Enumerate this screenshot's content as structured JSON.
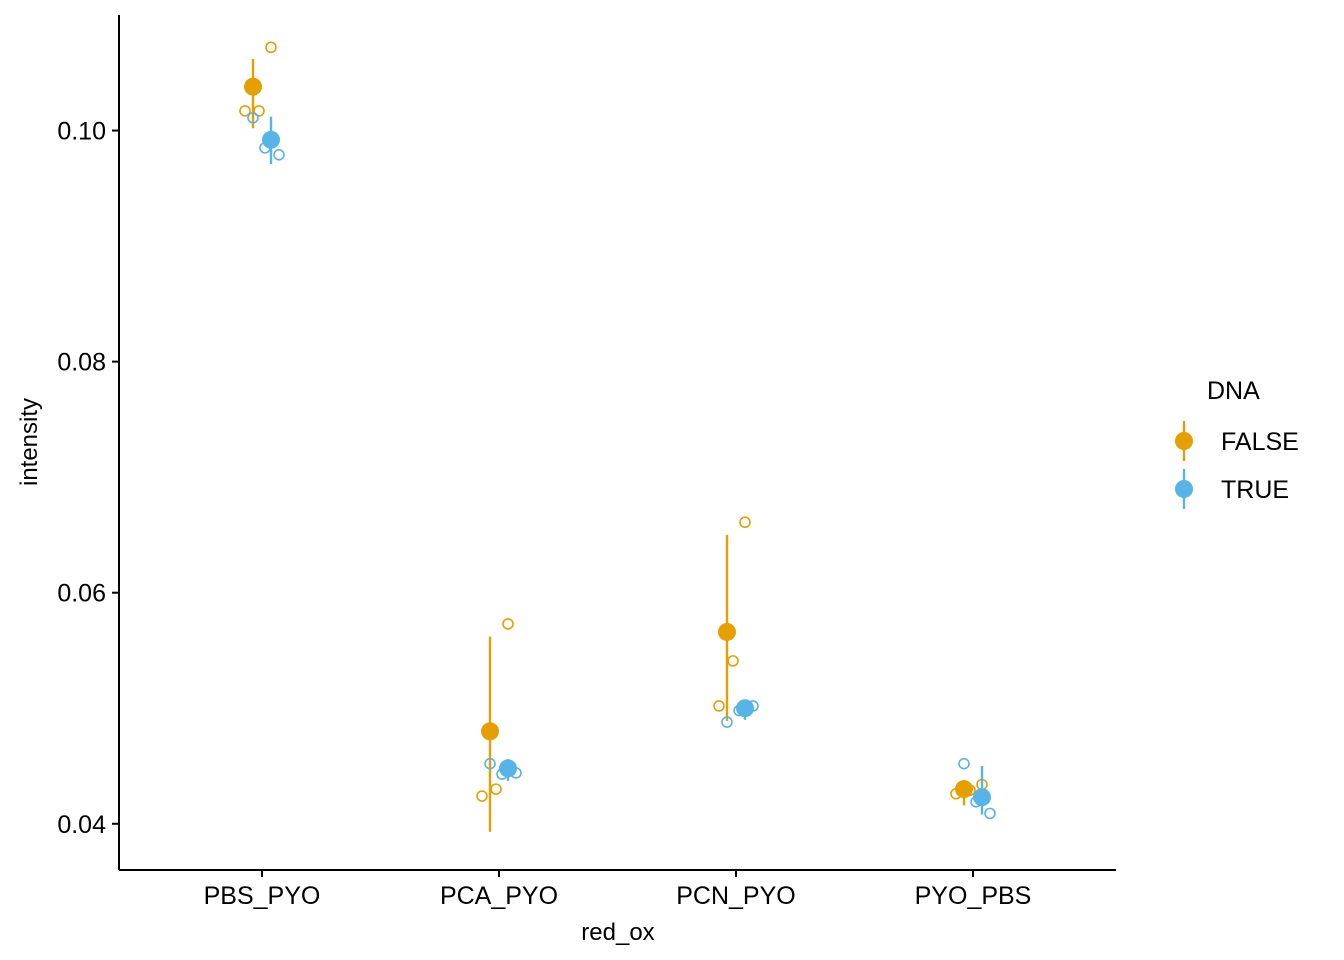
{
  "chart_data": {
    "type": "scatter",
    "xlabel": "red_ox",
    "ylabel": "intensity",
    "categories": [
      "PBS_PYO",
      "PCA_PYO",
      "PCN_PYO",
      "PYO_PBS"
    ],
    "ylim": [
      0.036,
      0.11
    ],
    "yticks": [
      0.04,
      0.06,
      0.08,
      0.1
    ],
    "ytick_labels": [
      "0.04",
      "0.06",
      "0.08",
      "0.10"
    ],
    "grid": false,
    "legend": {
      "title": "DNA",
      "placement": "right",
      "entries": [
        "FALSE",
        "TRUE"
      ]
    },
    "colors": {
      "FALSE": "#E69F00",
      "TRUE": "#56B4E9"
    },
    "series": [
      {
        "name": "FALSE",
        "summary": [
          {
            "category": "PBS_PYO",
            "mean": 0.1038,
            "low": 0.1002,
            "high": 0.1062
          },
          {
            "category": "PCA_PYO",
            "mean": 0.048,
            "low": 0.0393,
            "high": 0.0562
          },
          {
            "category": "PCN_PYO",
            "mean": 0.0566,
            "low": 0.0489,
            "high": 0.065
          },
          {
            "category": "PYO_PBS",
            "mean": 0.043,
            "low": 0.0416,
            "high": 0.0438
          }
        ],
        "points": [
          {
            "category": "PBS_PYO",
            "values": [
              0.1072,
              0.1017,
              0.1017
            ]
          },
          {
            "category": "PCA_PYO",
            "values": [
              0.0573,
              0.043,
              0.0424
            ]
          },
          {
            "category": "PCN_PYO",
            "values": [
              0.0661,
              0.0541,
              0.0502
            ]
          },
          {
            "category": "PYO_PBS",
            "values": [
              0.0434,
              0.0429,
              0.0426
            ]
          }
        ]
      },
      {
        "name": "TRUE",
        "summary": [
          {
            "category": "PBS_PYO",
            "mean": 0.0992,
            "low": 0.0971,
            "high": 0.1012
          },
          {
            "category": "PCA_PYO",
            "mean": 0.0448,
            "low": 0.0437,
            "high": 0.0456
          },
          {
            "category": "PCN_PYO",
            "mean": 0.05,
            "low": 0.049,
            "high": 0.0507
          },
          {
            "category": "PYO_PBS",
            "mean": 0.0423,
            "low": 0.0408,
            "high": 0.045
          }
        ],
        "points": [
          {
            "category": "PBS_PYO",
            "values": [
              0.1011,
              0.0985,
              0.0979
            ]
          },
          {
            "category": "PCA_PYO",
            "values": [
              0.0452,
              0.0443,
              0.0444
            ]
          },
          {
            "category": "PCN_PYO",
            "values": [
              0.0488,
              0.0498,
              0.0502
            ]
          },
          {
            "category": "PYO_PBS",
            "values": [
              0.0452,
              0.0419,
              0.0409
            ]
          }
        ]
      }
    ]
  }
}
